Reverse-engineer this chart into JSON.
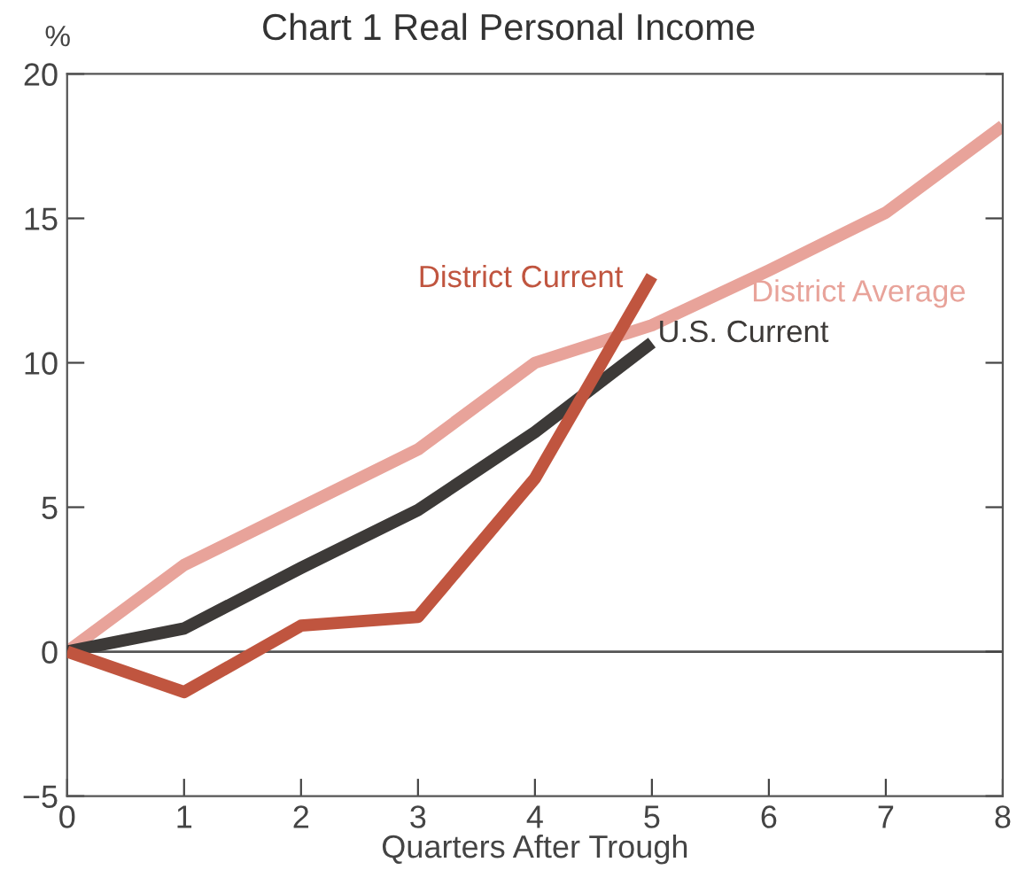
{
  "chart_data": {
    "type": "line",
    "title": "Chart 1 Real Personal Income",
    "xlabel": "Quarters After Trough",
    "ylabel": "%",
    "series": [
      {
        "name": "District Average",
        "color": "#e8a39a",
        "x": [
          0,
          1,
          2,
          3,
          4,
          5,
          6,
          7,
          8
        ],
        "values": [
          0,
          3.0,
          5.0,
          7.0,
          10.0,
          11.3,
          13.2,
          15.2,
          18.2
        ]
      },
      {
        "name": "U.S. Current",
        "color": "#3d3a38",
        "x": [
          0,
          1,
          2,
          3,
          4,
          5
        ],
        "values": [
          0,
          0.8,
          2.9,
          4.9,
          7.6,
          10.7
        ]
      },
      {
        "name": "District Current",
        "color": "#c0553f",
        "x": [
          0,
          1,
          2,
          3,
          4,
          5
        ],
        "values": [
          0,
          -1.4,
          0.9,
          1.2,
          6.0,
          13.0
        ]
      }
    ],
    "xlim": [
      0,
      8
    ],
    "xticks": [
      0,
      1,
      2,
      3,
      4,
      5,
      6,
      7,
      8
    ],
    "ylim": [
      -5,
      20
    ],
    "yticks": [
      {
        "value": -5,
        "label": "−5"
      },
      0,
      5,
      10,
      15,
      20
    ],
    "ref_lines": [
      {
        "axis": "y",
        "value": 0,
        "color": "#555555"
      }
    ],
    "grid": false,
    "legend": false,
    "marker": "none",
    "line_style": "solid"
  }
}
